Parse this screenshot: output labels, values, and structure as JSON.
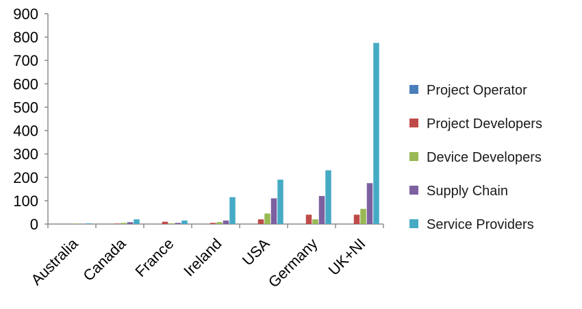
{
  "chart_data": {
    "type": "bar",
    "categories": [
      "Australia",
      "Canada",
      "France",
      "Ireland",
      "USA",
      "Germany",
      "UK+NI"
    ],
    "series": [
      {
        "name": "Project Operator",
        "color": "#4a7ebb",
        "values": [
          0,
          0,
          0,
          0,
          0,
          0,
          0
        ]
      },
      {
        "name": "Project Developers",
        "color": "#be4b48",
        "values": [
          0,
          2,
          10,
          5,
          20,
          40,
          40
        ]
      },
      {
        "name": "Device Developers",
        "color": "#98b954",
        "values": [
          2,
          5,
          3,
          8,
          45,
          20,
          65
        ]
      },
      {
        "name": "Supply Chain",
        "color": "#7d60a0",
        "values": [
          0,
          8,
          5,
          15,
          110,
          120,
          175
        ]
      },
      {
        "name": "Service Providers",
        "color": "#46aac5",
        "values": [
          3,
          20,
          15,
          115,
          190,
          230,
          775
        ]
      }
    ],
    "y_ticks": [
      "0",
      "100",
      "200",
      "300",
      "400",
      "500",
      "600",
      "700",
      "800",
      "900"
    ],
    "ylim": [
      0,
      900
    ],
    "grid": false,
    "legend_position": "right"
  }
}
